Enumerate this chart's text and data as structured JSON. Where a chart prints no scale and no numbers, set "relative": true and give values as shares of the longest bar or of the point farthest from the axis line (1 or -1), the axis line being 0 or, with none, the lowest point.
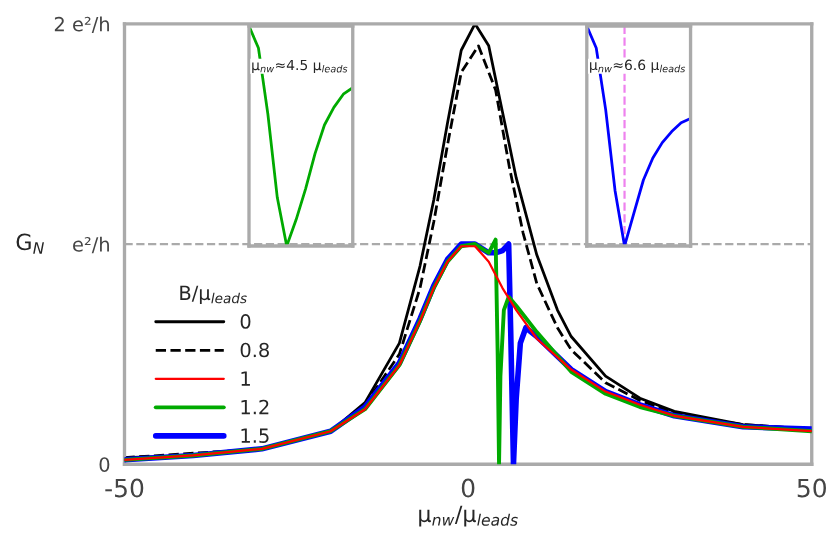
{
  "chart_data": [
    {
      "type": "line",
      "xlabel": "μ$_{nw}$/μ$_{leads}$",
      "ylabel": "G$_{N}$",
      "legend_title": "B/μ$_{leads}$",
      "legend": "left",
      "grid": "y",
      "xlim": [
        -50,
        50
      ],
      "xticks": [
        -50,
        0,
        50
      ],
      "ylim": [
        0,
        2
      ],
      "yticks": [
        {
          "value": 0,
          "label": "0"
        },
        {
          "value": 1,
          "label": "e²/h"
        },
        {
          "value": 2,
          "label": "2 e²/h"
        }
      ],
      "series": [
        {
          "name": "0",
          "color": "#000000",
          "line_style": "solid",
          "x": [
            -50,
            -40,
            -30,
            -20,
            -15,
            -10,
            -7,
            -5,
            -3,
            -1,
            1,
            3,
            5,
            7,
            10,
            13,
            15,
            20,
            25,
            30,
            40,
            50
          ],
          "values": [
            0.03,
            0.04,
            0.07,
            0.15,
            0.28,
            0.55,
            0.9,
            1.2,
            1.55,
            1.88,
            2.0,
            1.9,
            1.6,
            1.3,
            0.95,
            0.7,
            0.58,
            0.4,
            0.3,
            0.24,
            0.18,
            0.16
          ]
        },
        {
          "name": "0.8",
          "color": "#000000",
          "line_style": "dashed",
          "x": [
            -50,
            -30,
            -20,
            -15,
            -10,
            -7,
            -5,
            -3,
            -1,
            1.5,
            4,
            6,
            8,
            10,
            13,
            15,
            20,
            25,
            30,
            40,
            50
          ],
          "values": [
            0.03,
            0.07,
            0.15,
            0.27,
            0.5,
            0.8,
            1.1,
            1.45,
            1.78,
            1.9,
            1.7,
            1.35,
            1.05,
            0.82,
            0.62,
            0.52,
            0.37,
            0.29,
            0.23,
            0.18,
            0.16
          ]
        },
        {
          "name": "1",
          "color": "#ff0000",
          "line_style": "solid",
          "x": [
            -50,
            -40,
            -30,
            -20,
            -15,
            -10,
            -7,
            -5,
            -3,
            -1,
            1,
            3,
            5,
            7,
            10,
            15,
            20,
            25,
            30,
            40,
            50
          ],
          "values": [
            0.02,
            0.04,
            0.07,
            0.15,
            0.25,
            0.45,
            0.65,
            0.8,
            0.92,
            0.99,
            0.99,
            0.92,
            0.8,
            0.7,
            0.57,
            0.43,
            0.33,
            0.27,
            0.22,
            0.17,
            0.15
          ]
        },
        {
          "name": "1.2",
          "color": "#00aa00",
          "line_style": "solid",
          "x": [
            -50,
            -40,
            -30,
            -20,
            -15,
            -10,
            -7,
            -5,
            -3,
            -1,
            1,
            3,
            4,
            4.3,
            4.5,
            4.7,
            5.2,
            5.9,
            7,
            8,
            10,
            15,
            20,
            25,
            30,
            40,
            50
          ],
          "values": [
            0.02,
            0.04,
            0.07,
            0.15,
            0.25,
            0.45,
            0.65,
            0.8,
            0.92,
            0.99,
            1.0,
            0.96,
            1.02,
            0.5,
            0,
            0.4,
            0.7,
            0.76,
            0.72,
            0.68,
            0.6,
            0.42,
            0.32,
            0.26,
            0.22,
            0.17,
            0.15
          ]
        },
        {
          "name": "1.5",
          "color": "#0000ff",
          "line_style": "solid",
          "x": [
            -50,
            -40,
            -30,
            -20,
            -15,
            -10,
            -7,
            -5,
            -3,
            -1,
            1,
            3,
            4,
            5,
            5.9,
            6.2,
            6.6,
            7,
            7.6,
            8.4,
            10,
            15,
            20,
            25,
            30,
            40,
            50
          ],
          "values": [
            0.02,
            0.04,
            0.07,
            0.15,
            0.26,
            0.46,
            0.66,
            0.81,
            0.93,
            1.0,
            1.0,
            0.96,
            0.96,
            0.97,
            1.0,
            0.6,
            0,
            0.3,
            0.55,
            0.62,
            0.58,
            0.43,
            0.33,
            0.27,
            0.22,
            0.17,
            0.16
          ]
        }
      ]
    },
    {
      "type": "line",
      "relative": true,
      "categories": [
        null,
        null,
        null,
        null,
        null,
        null,
        null,
        null,
        null,
        null,
        null,
        null
      ],
      "annotations": [
        "μ$_{nw}$≈4.5 μ$_{leads}$"
      ],
      "series": [
        {
          "color": "#00aa00",
          "values": [
            1.0,
            0.9,
            0.6,
            0.22,
            0,
            0.12,
            0.26,
            0.42,
            0.55,
            0.63,
            0.69,
            0.72
          ]
        }
      ]
    },
    {
      "type": "line",
      "relative": true,
      "categories": [
        null,
        null,
        null,
        null,
        null,
        null,
        null,
        null,
        null,
        null,
        null,
        null
      ],
      "annotations": [
        "μ$_{nw}$≈6.6 μ$_{leads}$"
      ],
      "series": [
        {
          "color": "#0000ff",
          "values": [
            1.0,
            0.9,
            0.62,
            0.25,
            0,
            0.15,
            0.3,
            0.4,
            0.47,
            0.52,
            0.56,
            0.58
          ]
        }
      ]
    }
  ]
}
